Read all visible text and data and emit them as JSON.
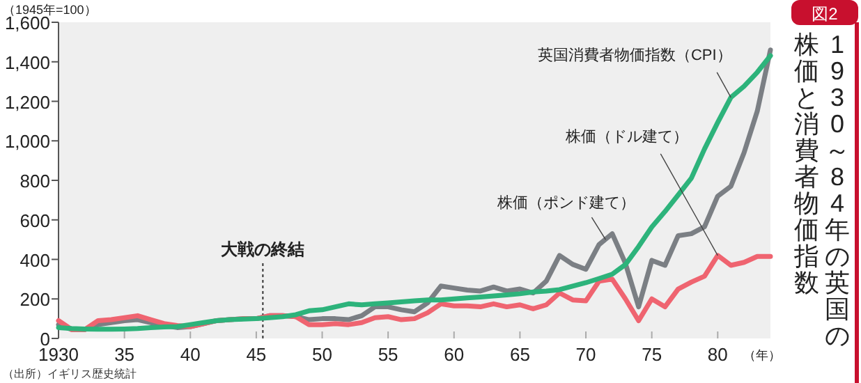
{
  "chart_data": {
    "type": "line",
    "title": "1930～84年の英国の",
    "subtitle": "株価と消費者物価指数",
    "ylabel": "（1945年=100）",
    "xlabel": "（年）",
    "xlim": [
      1930,
      1984
    ],
    "ylim": [
      0,
      1600
    ],
    "xticks": [
      {
        "value": 1930,
        "label": "1930"
      },
      {
        "value": 1935,
        "label": "35"
      },
      {
        "value": 1940,
        "label": "40"
      },
      {
        "value": 1945,
        "label": "45"
      },
      {
        "value": 1950,
        "label": "50"
      },
      {
        "value": 1955,
        "label": "55"
      },
      {
        "value": 1960,
        "label": "60"
      },
      {
        "value": 1965,
        "label": "65"
      },
      {
        "value": 1970,
        "label": "70"
      },
      {
        "value": 1975,
        "label": "75"
      },
      {
        "value": 1980,
        "label": "80"
      }
    ],
    "yticks": [
      0,
      200,
      400,
      600,
      800,
      {
        "value": 1000,
        "label": "1,000"
      },
      {
        "value": 1200,
        "label": "1,200"
      },
      {
        "value": 1400,
        "label": "1,400"
      },
      {
        "value": 1600,
        "label": "1,600"
      }
    ],
    "x": [
      1930,
      1931,
      1932,
      1933,
      1934,
      1935,
      1936,
      1937,
      1938,
      1939,
      1940,
      1941,
      1942,
      1943,
      1944,
      1945,
      1946,
      1947,
      1948,
      1949,
      1950,
      1951,
      1952,
      1953,
      1954,
      1955,
      1956,
      1957,
      1958,
      1959,
      1960,
      1961,
      1962,
      1963,
      1964,
      1965,
      1966,
      1967,
      1968,
      1969,
      1970,
      1971,
      1972,
      1973,
      1974,
      1975,
      1976,
      1977,
      1978,
      1979,
      1980,
      1981,
      1982,
      1983,
      1984
    ],
    "series": [
      {
        "color": "#7b7f84",
        "values": [
          70,
          45,
          45,
          70,
          80,
          90,
          95,
          80,
          65,
          55,
          60,
          75,
          90,
          95,
          100,
          100,
          115,
          115,
          110,
          95,
          100,
          100,
          95,
          115,
          160,
          160,
          145,
          135,
          180,
          265,
          255,
          245,
          240,
          260,
          240,
          250,
          230,
          290,
          420,
          375,
          350,
          475,
          530,
          380,
          160,
          395,
          370,
          520,
          530,
          565,
          720,
          770,
          940,
          1150,
          1460
        ]
      },
      {
        "color": "#ef6470",
        "values": [
          90,
          45,
          45,
          90,
          95,
          105,
          115,
          95,
          75,
          65,
          60,
          75,
          90,
          95,
          100,
          100,
          115,
          115,
          110,
          70,
          70,
          75,
          70,
          80,
          105,
          110,
          95,
          100,
          130,
          175,
          165,
          165,
          160,
          175,
          160,
          170,
          150,
          170,
          230,
          195,
          190,
          290,
          300,
          200,
          90,
          200,
          160,
          250,
          285,
          315,
          420,
          370,
          385,
          415,
          415
        ]
      },
      {
        "color": "#2db37b",
        "values": [
          55,
          50,
          48,
          47,
          47,
          48,
          50,
          55,
          58,
          60,
          70,
          80,
          90,
          95,
          98,
          100,
          105,
          110,
          120,
          140,
          145,
          160,
          175,
          170,
          175,
          180,
          185,
          190,
          195,
          195,
          200,
          205,
          210,
          215,
          220,
          226,
          235,
          240,
          247,
          265,
          282,
          303,
          325,
          374,
          465,
          564,
          642,
          726,
          811,
          959,
          1093,
          1220,
          1276,
          1347,
          1431
        ]
      }
    ],
    "ref_lines": [
      {
        "axis": "x",
        "value": 1945.5,
        "label": "大戦の終結",
        "line_style": "dotted",
        "color": "#333333"
      }
    ],
    "annotations": [
      {
        "text": "英国消費者物価指数（CPI）",
        "x": 1981,
        "y": 1220
      },
      {
        "text": "株価（ポンド建て）",
        "x": 1971.5,
        "y": 500
      },
      {
        "text": "株価（ドル建て）",
        "x": 1980,
        "y": 420
      },
      "（出所）イギリス歴史統計",
      "図2"
    ]
  }
}
